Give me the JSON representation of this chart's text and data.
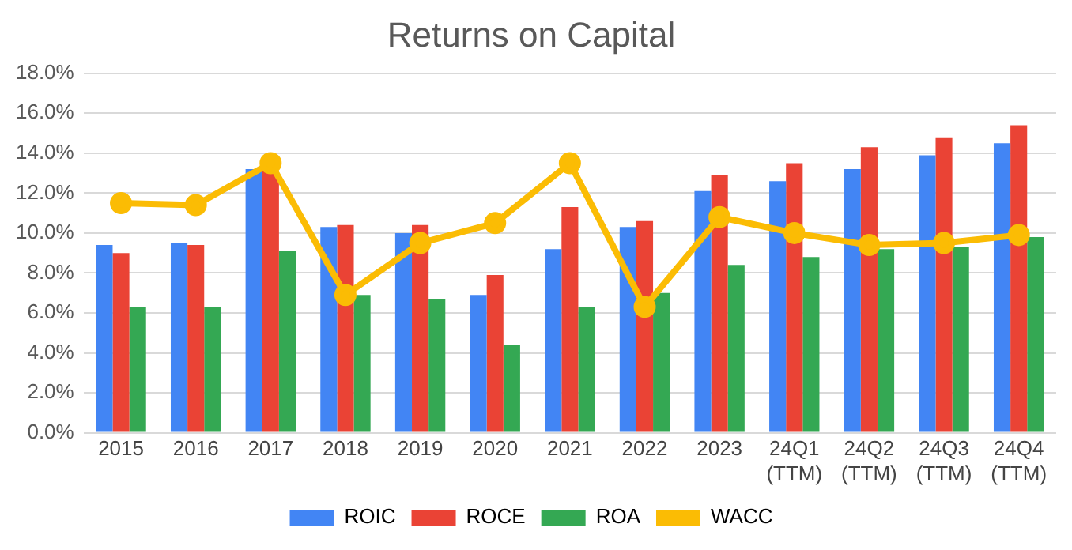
{
  "chart_data": {
    "type": "bar",
    "title": "Returns on Capital",
    "categories": [
      "2015",
      "2016",
      "2017",
      "2018",
      "2019",
      "2020",
      "2021",
      "2022",
      "2023",
      "24Q1\n(TTM)",
      "24Q2\n(TTM)",
      "24Q3\n(TTM)",
      "24Q4\n(TTM)"
    ],
    "series": [
      {
        "name": "ROIC",
        "color": "#4285f4",
        "values": [
          9.4,
          9.5,
          13.2,
          10.3,
          10.0,
          6.9,
          9.2,
          10.3,
          12.1,
          12.6,
          13.2,
          13.9,
          14.5
        ]
      },
      {
        "name": "ROCE",
        "color": "#ea4335",
        "values": [
          9.0,
          9.4,
          13.1,
          10.4,
          10.4,
          7.9,
          11.3,
          10.6,
          12.9,
          13.5,
          14.3,
          14.8,
          15.4
        ]
      },
      {
        "name": "ROA",
        "color": "#34a853",
        "values": [
          6.3,
          6.3,
          9.1,
          6.9,
          6.7,
          4.4,
          6.3,
          7.0,
          8.4,
          8.8,
          9.2,
          9.3,
          9.8
        ]
      },
      {
        "name": "WACC",
        "color": "#fbbc04",
        "type": "line",
        "marker": "circle",
        "values": [
          11.5,
          11.4,
          13.5,
          6.9,
          9.5,
          10.5,
          13.5,
          6.3,
          10.8,
          10.0,
          9.4,
          9.5,
          9.9
        ]
      }
    ],
    "ylim": [
      0,
      18
    ],
    "yticks": [
      {
        "value": 0,
        "label": "0.0%"
      },
      {
        "value": 2,
        "label": "2.0%"
      },
      {
        "value": 4,
        "label": "4.0%"
      },
      {
        "value": 6,
        "label": "6.0%"
      },
      {
        "value": 8,
        "label": "8.0%"
      },
      {
        "value": 10,
        "label": "10.0%"
      },
      {
        "value": 12,
        "label": "12.0%"
      },
      {
        "value": 14,
        "label": "14.0%"
      },
      {
        "value": 16,
        "label": "16.0%"
      },
      {
        "value": 18,
        "label": "18.0%"
      }
    ],
    "grid": "y",
    "legend": "bottom"
  }
}
